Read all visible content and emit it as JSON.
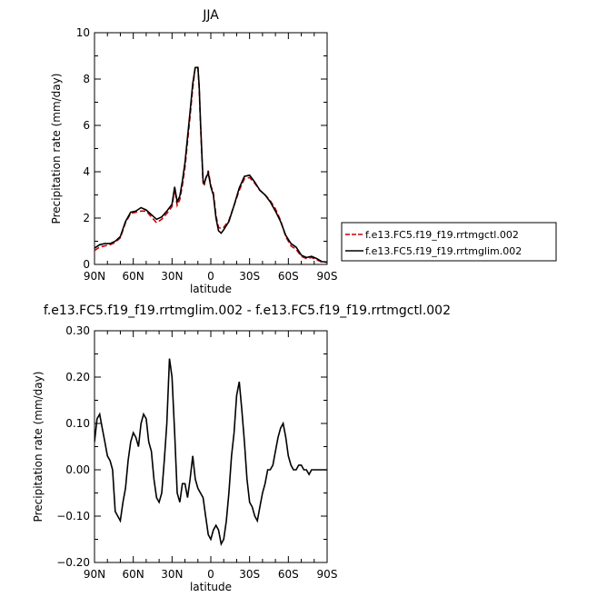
{
  "chart_data": [
    {
      "type": "line",
      "title": "JJA",
      "xlabel": "latitude",
      "ylabel": "Precipitation rate (mm/day)",
      "xlim": [
        90,
        -90
      ],
      "ylim": [
        0,
        10
      ],
      "xticks": [
        90,
        60,
        30,
        0,
        -30,
        -60,
        -90
      ],
      "xtick_labels": [
        "90N",
        "60N",
        "30N",
        "0",
        "30S",
        "60S",
        "90S"
      ],
      "yticks": [
        0,
        2,
        4,
        6,
        8,
        10
      ],
      "ytick_labels": [
        "0",
        "2",
        "4",
        "6",
        "8",
        "10"
      ],
      "legend_position": "right",
      "series": [
        {
          "name": "f.e13.FC5.f19_f19.rrtmgctl.002",
          "color": "#cc0000",
          "style": "dashed",
          "x": [
            90,
            86,
            82,
            78,
            74,
            70,
            66,
            62,
            58,
            54,
            50,
            46,
            42,
            38,
            34,
            30,
            28,
            26,
            24,
            22,
            20,
            18,
            16,
            14,
            12,
            10,
            9,
            8,
            7,
            6,
            5,
            4,
            2,
            0,
            -2,
            -4,
            -6,
            -8,
            -10,
            -14,
            -18,
            -22,
            -26,
            -30,
            -34,
            -38,
            -42,
            -46,
            -50,
            -54,
            -58,
            -62,
            -66,
            -70,
            -74,
            -78,
            -82,
            -86,
            -90
          ],
          "y": [
            0.6,
            0.75,
            0.8,
            0.85,
            0.95,
            1.15,
            1.8,
            2.2,
            2.25,
            2.3,
            2.3,
            2.05,
            1.8,
            1.95,
            2.2,
            2.5,
            3.25,
            2.55,
            2.8,
            3.4,
            4.2,
            5.3,
            6.4,
            7.6,
            8.55,
            8.5,
            7.6,
            6.1,
            4.8,
            3.5,
            3.45,
            3.7,
            4.05,
            3.4,
            3.1,
            2.1,
            1.6,
            1.55,
            1.6,
            1.9,
            2.55,
            3.2,
            3.7,
            3.75,
            3.5,
            3.2,
            3.0,
            2.75,
            2.4,
            1.9,
            1.2,
            0.8,
            0.65,
            0.35,
            0.25,
            0.3,
            0.2,
            0.1,
            0.1
          ]
        },
        {
          "name": "f.e13.FC5.f19_f19.rrtmglim.002",
          "color": "#000000",
          "style": "solid",
          "x": [
            90,
            86,
            82,
            78,
            74,
            70,
            66,
            62,
            58,
            54,
            50,
            46,
            42,
            38,
            34,
            30,
            28,
            26,
            24,
            22,
            20,
            18,
            16,
            14,
            12,
            10,
            9,
            8,
            7,
            6,
            5,
            4,
            2,
            0,
            -2,
            -4,
            -6,
            -8,
            -10,
            -14,
            -18,
            -22,
            -26,
            -30,
            -34,
            -38,
            -42,
            -46,
            -50,
            -54,
            -58,
            -62,
            -66,
            -70,
            -74,
            -78,
            -82,
            -86,
            -90
          ],
          "y": [
            0.7,
            0.85,
            0.9,
            0.9,
            1.0,
            1.2,
            1.85,
            2.25,
            2.3,
            2.45,
            2.35,
            2.15,
            1.95,
            2.05,
            2.3,
            2.6,
            3.35,
            2.7,
            2.95,
            3.6,
            4.4,
            5.5,
            6.6,
            7.8,
            8.5,
            8.5,
            7.7,
            6.2,
            4.9,
            3.6,
            3.5,
            3.7,
            3.95,
            3.35,
            3.0,
            2.0,
            1.45,
            1.35,
            1.5,
            1.85,
            2.55,
            3.3,
            3.8,
            3.85,
            3.55,
            3.2,
            3.0,
            2.7,
            2.3,
            1.85,
            1.25,
            0.9,
            0.75,
            0.4,
            0.3,
            0.35,
            0.25,
            0.12,
            0.1
          ]
        }
      ]
    },
    {
      "type": "line",
      "title": "f.e13.FC5.f19_f19.rrtmglim.002 - f.e13.FC5.f19_f19.rrtmgctl.002",
      "xlabel": "latitude",
      "ylabel": "Precipitation rate (mm/day)",
      "xlim": [
        90,
        -90
      ],
      "ylim": [
        -0.2,
        0.3
      ],
      "xticks": [
        90,
        60,
        30,
        0,
        -30,
        -60,
        -90
      ],
      "xtick_labels": [
        "90N",
        "60N",
        "30N",
        "0",
        "30S",
        "60S",
        "90S"
      ],
      "yticks": [
        -0.2,
        -0.1,
        0.0,
        0.1,
        0.2,
        0.3
      ],
      "ytick_labels": [
        "−0.20",
        "−0.10",
        "0.00",
        "0.10",
        "0.20",
        "0.30"
      ],
      "series": [
        {
          "color": "#000000",
          "style": "solid",
          "x": [
            90,
            88,
            86,
            84,
            82,
            80,
            78,
            76,
            74,
            72,
            70,
            68,
            66,
            64,
            62,
            60,
            58,
            56,
            54,
            52,
            50,
            48,
            46,
            44,
            42,
            40,
            38,
            36,
            34,
            32,
            30,
            28,
            26,
            24,
            22,
            20,
            18,
            16,
            14,
            12,
            10,
            8,
            6,
            4,
            2,
            0,
            -2,
            -4,
            -6,
            -8,
            -10,
            -12,
            -14,
            -16,
            -18,
            -20,
            -22,
            -24,
            -26,
            -28,
            -30,
            -32,
            -34,
            -36,
            -38,
            -40,
            -42,
            -44,
            -46,
            -48,
            -50,
            -52,
            -54,
            -56,
            -58,
            -60,
            -62,
            -64,
            -66,
            -68,
            -70,
            -72,
            -74,
            -76,
            -78,
            -80,
            -82,
            -84,
            -86,
            -88,
            -90
          ],
          "y": [
            0.06,
            0.11,
            0.12,
            0.09,
            0.06,
            0.03,
            0.02,
            0.0,
            -0.09,
            -0.1,
            -0.11,
            -0.07,
            -0.04,
            0.02,
            0.06,
            0.08,
            0.07,
            0.05,
            0.1,
            0.12,
            0.11,
            0.06,
            0.04,
            -0.02,
            -0.06,
            -0.07,
            -0.05,
            0.02,
            0.1,
            0.24,
            0.2,
            0.08,
            -0.05,
            -0.07,
            -0.03,
            -0.03,
            -0.06,
            -0.02,
            0.03,
            -0.02,
            -0.04,
            -0.05,
            -0.06,
            -0.1,
            -0.14,
            -0.15,
            -0.13,
            -0.12,
            -0.13,
            -0.16,
            -0.15,
            -0.11,
            -0.05,
            0.03,
            0.08,
            0.16,
            0.19,
            0.13,
            0.06,
            -0.02,
            -0.07,
            -0.08,
            -0.1,
            -0.11,
            -0.08,
            -0.05,
            -0.03,
            0.0,
            0.0,
            0.01,
            0.04,
            0.07,
            0.09,
            0.1,
            0.07,
            0.03,
            0.01,
            0.0,
            0.0,
            0.01,
            0.01,
            0.0,
            0.0,
            -0.01,
            0.0,
            0.0,
            0.0,
            0.0,
            0.0,
            0.0,
            0.0
          ]
        }
      ]
    }
  ]
}
